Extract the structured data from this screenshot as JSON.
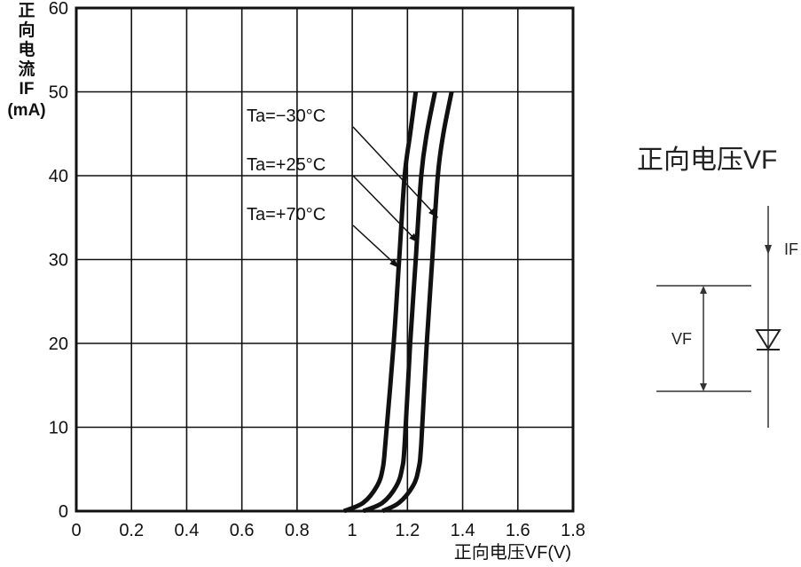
{
  "chart_data": {
    "type": "line",
    "xlabel": "正向电压VF(V)",
    "ylabel_lines": [
      "正",
      "向",
      "电",
      "流",
      "IF",
      "(mA)"
    ],
    "xlim": [
      0,
      1.8
    ],
    "ylim": [
      0,
      60
    ],
    "x_ticks": [
      0,
      0.2,
      0.4,
      0.6,
      0.8,
      1,
      1.2,
      1.4,
      1.6,
      1.8
    ],
    "x_tick_labels": [
      "0",
      "0.2",
      "0.4",
      "0.6",
      "0.8",
      "1",
      "1.2",
      "1.4",
      "1.6",
      "1.8"
    ],
    "y_ticks": [
      0,
      10,
      20,
      30,
      40,
      50,
      60
    ],
    "y_tick_labels": [
      "0",
      "10",
      "20",
      "30",
      "40",
      "50",
      "60"
    ],
    "grid": true,
    "series": [
      {
        "name": "Ta=−30°C",
        "points": [
          [
            1.11,
            0
          ],
          [
            1.17,
            1
          ],
          [
            1.22,
            3
          ],
          [
            1.24,
            5
          ],
          [
            1.25,
            8
          ],
          [
            1.27,
            20
          ],
          [
            1.29,
            30
          ],
          [
            1.31,
            40
          ],
          [
            1.33,
            45
          ],
          [
            1.36,
            50
          ]
        ]
      },
      {
        "name": "Ta=+25°C",
        "points": [
          [
            1.04,
            0
          ],
          [
            1.11,
            1
          ],
          [
            1.16,
            3
          ],
          [
            1.18,
            5
          ],
          [
            1.19,
            8
          ],
          [
            1.21,
            20
          ],
          [
            1.23,
            30
          ],
          [
            1.25,
            40
          ],
          [
            1.27,
            45
          ],
          [
            1.3,
            50
          ]
        ]
      },
      {
        "name": "Ta=+70°C",
        "points": [
          [
            0.97,
            0
          ],
          [
            1.04,
            1
          ],
          [
            1.09,
            3
          ],
          [
            1.11,
            5
          ],
          [
            1.12,
            8
          ],
          [
            1.15,
            20
          ],
          [
            1.17,
            30
          ],
          [
            1.19,
            40
          ],
          [
            1.21,
            45
          ],
          [
            1.23,
            50
          ]
        ]
      }
    ],
    "annotations": [
      {
        "text": "Ta=−30°C",
        "series": 0,
        "target": [
          1.31,
          35
        ]
      },
      {
        "text": "Ta=+25°C",
        "series": 1,
        "target": [
          1.24,
          32
        ]
      },
      {
        "text": "Ta=+70°C",
        "series": 2,
        "target": [
          1.17,
          29
        ]
      }
    ]
  },
  "side_diagram": {
    "title": "正向电压VF",
    "current_label": "IF",
    "voltage_label": "VF"
  }
}
